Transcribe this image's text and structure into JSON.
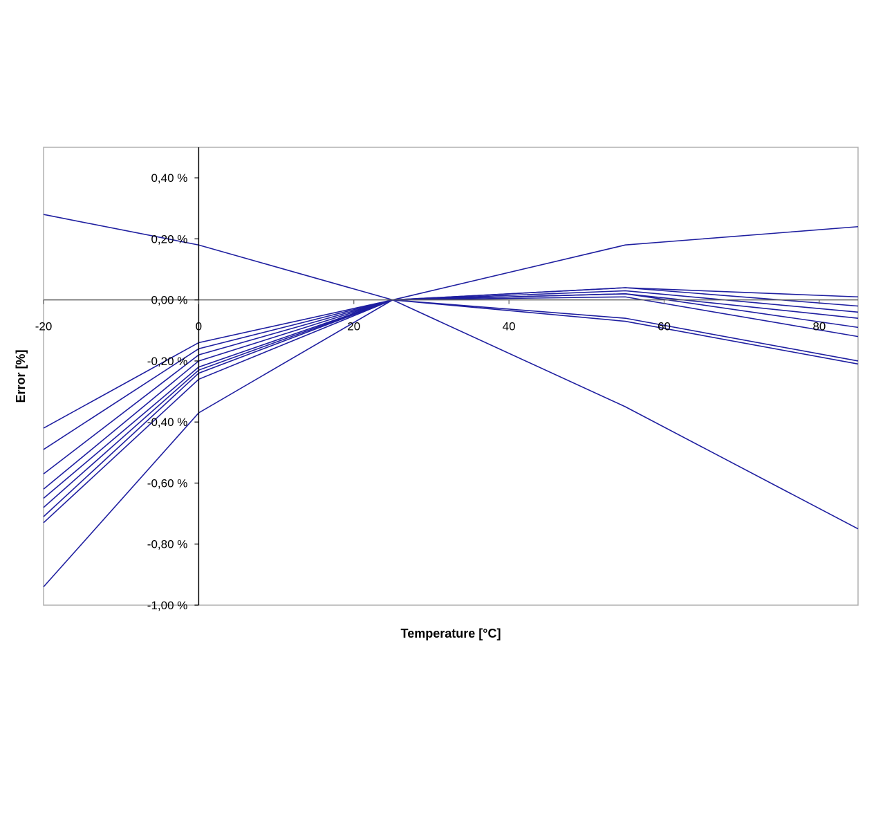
{
  "chart_data": {
    "type": "line",
    "title": "",
    "xlabel": "Temperature [°C]",
    "ylabel": "Error [%]",
    "xlim": [
      -20,
      85
    ],
    "ylim": [
      -1.0,
      0.5
    ],
    "x_ticks": [
      -20,
      0,
      20,
      40,
      60,
      80
    ],
    "x_tick_labels": [
      "-20",
      "0",
      "20",
      "40",
      "60",
      "80"
    ],
    "y_ticks": [
      0.4,
      0.2,
      0.0,
      -0.2,
      -0.4,
      -0.6,
      -0.8,
      -1.0
    ],
    "y_tick_labels": [
      "0,40 %",
      "0,20 %",
      "0,00 %",
      "-0,20 %",
      "-0,40 %",
      "-0,60 %",
      "-0,80 %",
      "-1,00 %"
    ],
    "grid": false,
    "legend": "none",
    "line_color": "#1f1fa0",
    "x": [
      -20,
      0,
      25,
      55,
      85
    ],
    "series": [
      {
        "values": [
          0.28,
          0.18,
          0.0,
          -0.35,
          -0.75
        ]
      },
      {
        "values": [
          -0.94,
          -0.37,
          0.0,
          0.18,
          0.24
        ]
      },
      {
        "values": [
          -0.42,
          -0.14,
          0.0,
          0.04,
          0.01
        ]
      },
      {
        "values": [
          -0.49,
          -0.16,
          0.0,
          0.04,
          -0.02
        ]
      },
      {
        "values": [
          -0.57,
          -0.18,
          0.0,
          0.03,
          -0.04
        ]
      },
      {
        "values": [
          -0.62,
          -0.2,
          0.0,
          0.02,
          -0.06
        ]
      },
      {
        "values": [
          -0.65,
          -0.22,
          0.0,
          0.02,
          -0.09
        ]
      },
      {
        "values": [
          -0.68,
          -0.23,
          0.0,
          0.01,
          -0.12
        ]
      },
      {
        "values": [
          -0.71,
          -0.24,
          0.0,
          -0.06,
          -0.2
        ]
      },
      {
        "values": [
          -0.73,
          -0.26,
          0.0,
          -0.07,
          -0.21
        ]
      }
    ]
  }
}
